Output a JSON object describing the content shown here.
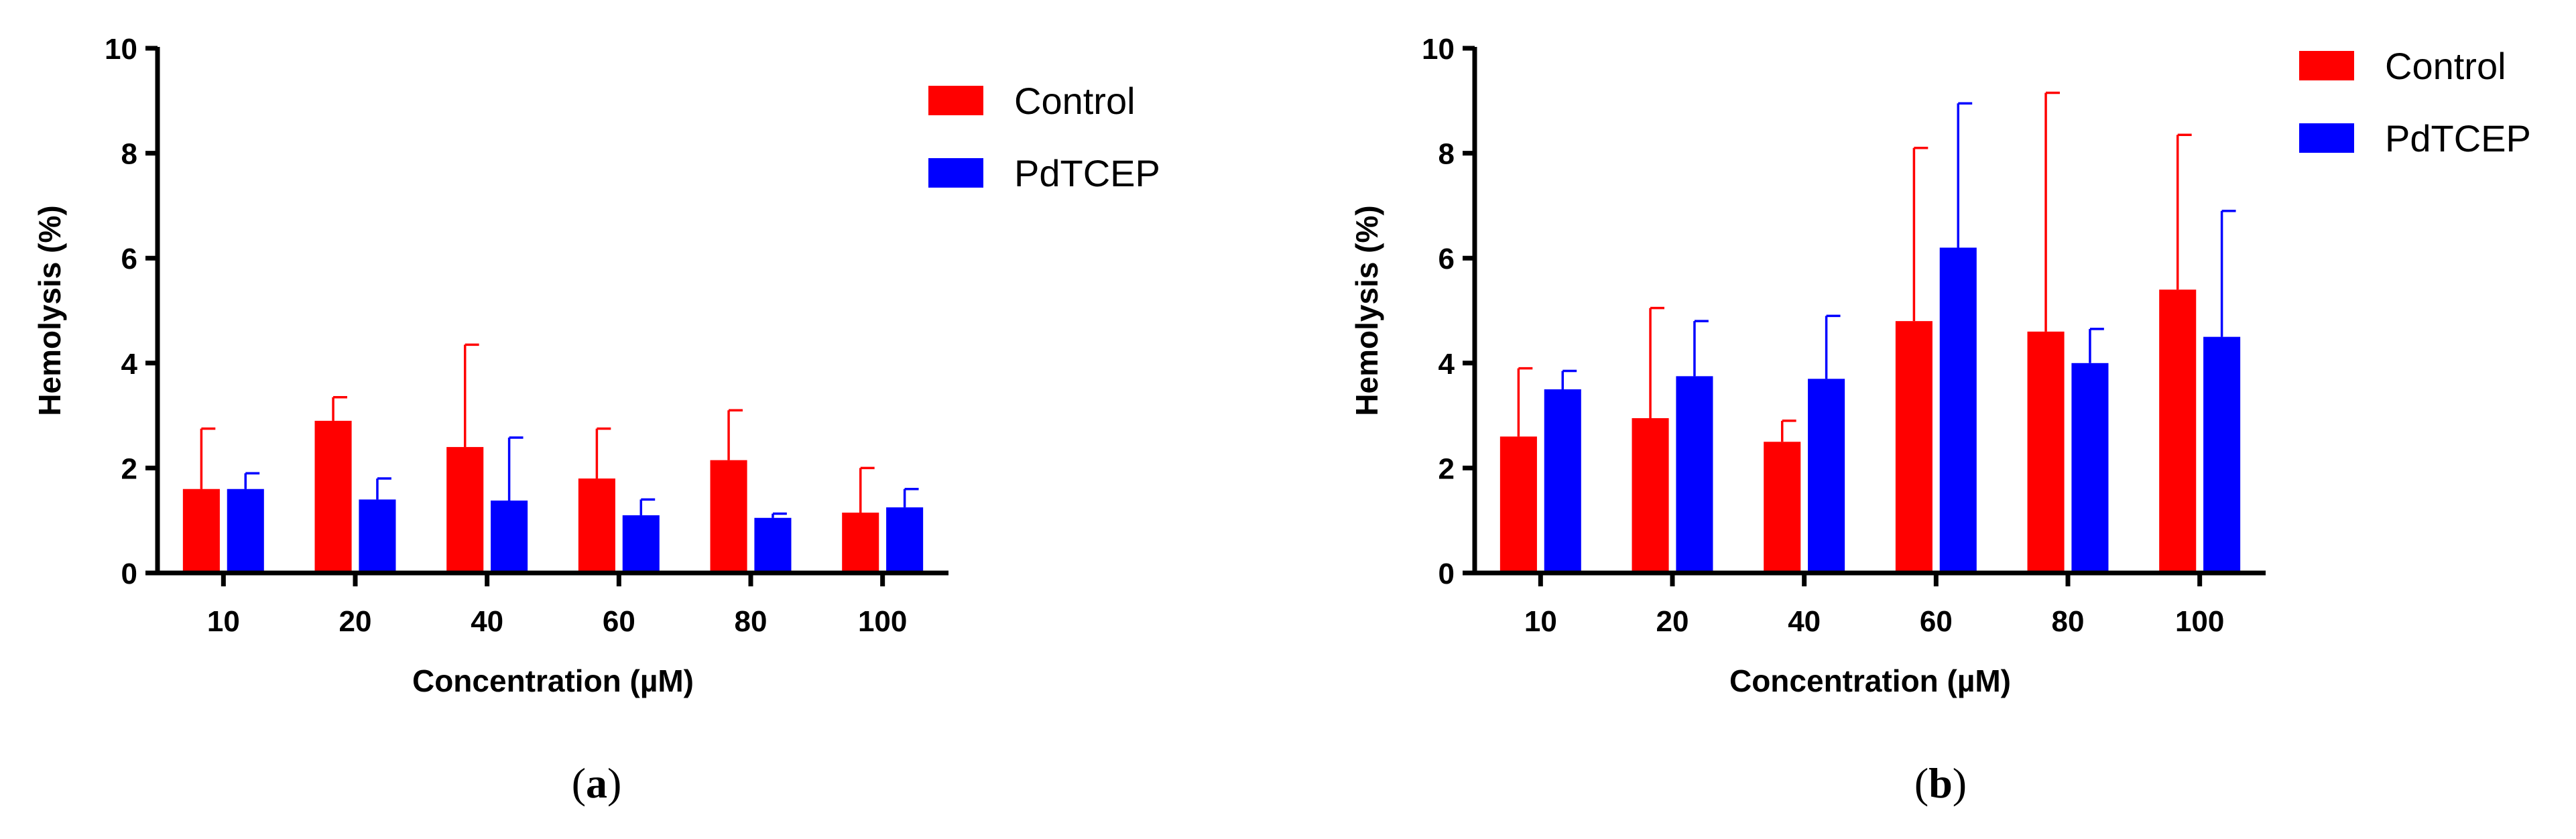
{
  "colors": {
    "control": "#ff0000",
    "pdtcep": "#0000ff",
    "axis": "#000000"
  },
  "chart_data": [
    {
      "type": "bar",
      "panel_label": "a",
      "caption": {
        "open": "(",
        "letter": "a",
        "close": ")"
      },
      "xlabel": "Concentration (µM)",
      "ylabel": "Hemolysis (%)",
      "ylim": [
        0,
        10
      ],
      "yticks": [
        0,
        2,
        4,
        6,
        8,
        10
      ],
      "categories": [
        "10",
        "20",
        "40",
        "60",
        "80",
        "100"
      ],
      "legend_position": "top-right",
      "series": [
        {
          "name": "Control",
          "color_key": "control",
          "values": [
            1.6,
            2.9,
            2.4,
            1.8,
            2.15,
            1.15
          ],
          "errors": [
            1.15,
            0.45,
            1.95,
            0.95,
            0.95,
            0.85
          ]
        },
        {
          "name": "PdTCEP",
          "color_key": "pdtcep",
          "values": [
            1.6,
            1.4,
            1.38,
            1.1,
            1.05,
            1.25
          ],
          "errors": [
            0.3,
            0.4,
            1.2,
            0.3,
            0.08,
            0.35
          ]
        }
      ]
    },
    {
      "type": "bar",
      "panel_label": "b",
      "caption": {
        "open": "(",
        "letter": "b",
        "close": ")"
      },
      "xlabel": "Concentration (µM)",
      "ylabel": "Hemolysis (%)",
      "ylim": [
        0,
        10
      ],
      "yticks": [
        0,
        2,
        4,
        6,
        8,
        10
      ],
      "categories": [
        "10",
        "20",
        "40",
        "60",
        "80",
        "100"
      ],
      "legend_position": "top-right",
      "series": [
        {
          "name": "Control",
          "color_key": "control",
          "values": [
            2.6,
            2.95,
            2.5,
            4.8,
            4.6,
            5.4
          ],
          "errors": [
            1.3,
            2.1,
            0.4,
            3.3,
            4.55,
            2.95
          ]
        },
        {
          "name": "PdTCEP",
          "color_key": "pdtcep",
          "values": [
            3.5,
            3.75,
            3.7,
            6.2,
            4.0,
            4.5
          ],
          "errors": [
            0.35,
            1.05,
            1.2,
            2.75,
            0.65,
            2.4
          ]
        }
      ]
    }
  ]
}
